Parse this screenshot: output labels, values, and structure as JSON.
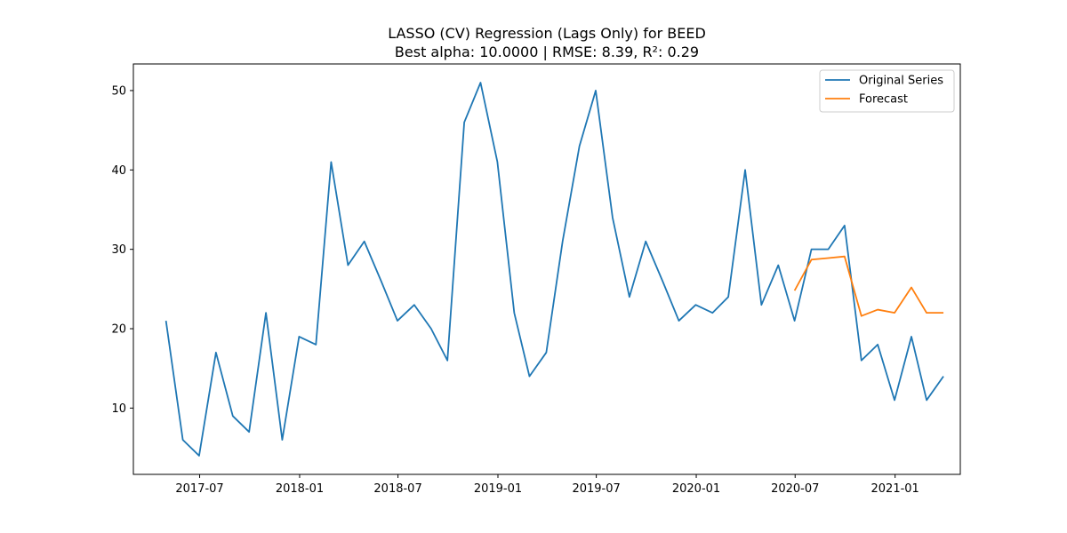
{
  "chart_data": {
    "type": "line",
    "title": "LASSO (CV) Regression (Lags Only) for BEED",
    "subtitle": "Best alpha: 10.0000 | RMSE: 8.39, R²: 0.29",
    "xlabel": "",
    "ylabel": "",
    "x_axis_type": "date",
    "xlim": [
      "2017-03-01",
      "2021-05-01"
    ],
    "ylim": [
      1.65,
      53.35
    ],
    "x_ticks": [
      {
        "date": "2017-07-01",
        "label": "2017-07"
      },
      {
        "date": "2018-01-01",
        "label": "2018-01"
      },
      {
        "date": "2018-07-01",
        "label": "2018-07"
      },
      {
        "date": "2019-01-01",
        "label": "2019-01"
      },
      {
        "date": "2019-07-01",
        "label": "2019-07"
      },
      {
        "date": "2020-01-01",
        "label": "2020-01"
      },
      {
        "date": "2020-07-01",
        "label": "2020-07"
      },
      {
        "date": "2021-01-01",
        "label": "2021-01"
      }
    ],
    "y_ticks": [
      10,
      20,
      30,
      40,
      50
    ],
    "grid": false,
    "legend_position": "top-right",
    "series": [
      {
        "name": "Original Series",
        "color": "#1f77b4",
        "x": [
          "2017-04-30",
          "2017-05-31",
          "2017-06-30",
          "2017-07-31",
          "2017-08-31",
          "2017-09-30",
          "2017-10-31",
          "2017-11-30",
          "2017-12-31",
          "2018-01-31",
          "2018-02-28",
          "2018-03-31",
          "2018-04-30",
          "2018-05-31",
          "2018-06-30",
          "2018-07-31",
          "2018-08-31",
          "2018-09-30",
          "2018-10-31",
          "2018-11-30",
          "2018-12-31",
          "2019-01-31",
          "2019-02-28",
          "2019-03-31",
          "2019-04-30",
          "2019-05-31",
          "2019-06-30",
          "2019-07-31",
          "2019-08-31",
          "2019-09-30",
          "2019-10-31",
          "2019-11-30",
          "2019-12-31",
          "2020-01-31",
          "2020-02-29",
          "2020-03-31",
          "2020-04-30",
          "2020-05-31",
          "2020-06-30",
          "2020-07-31",
          "2020-08-31",
          "2020-09-30",
          "2020-10-31",
          "2020-11-30",
          "2020-12-31",
          "2021-01-31",
          "2021-02-28",
          "2021-03-31"
        ],
        "values": [
          21,
          6,
          4,
          17,
          9,
          7,
          22,
          6,
          19,
          18,
          41,
          28,
          31,
          26,
          21,
          23,
          20,
          16,
          46,
          51,
          41,
          22,
          14,
          17,
          31,
          43,
          50,
          34,
          24,
          31,
          26,
          21,
          23,
          22,
          24,
          40,
          23,
          28,
          21,
          30,
          30,
          33,
          16,
          18,
          11,
          19,
          11,
          14
        ]
      },
      {
        "name": "Forecast",
        "color": "#ff7f0e",
        "x": [
          "2020-06-30",
          "2020-07-31",
          "2020-08-31",
          "2020-09-30",
          "2020-10-31",
          "2020-11-30",
          "2020-12-31",
          "2021-01-31",
          "2021-02-28",
          "2021-03-31"
        ],
        "values": [
          24.8,
          28.7,
          28.9,
          29.1,
          21.6,
          22.4,
          22.0,
          25.2,
          22.0,
          22.0
        ]
      }
    ]
  }
}
